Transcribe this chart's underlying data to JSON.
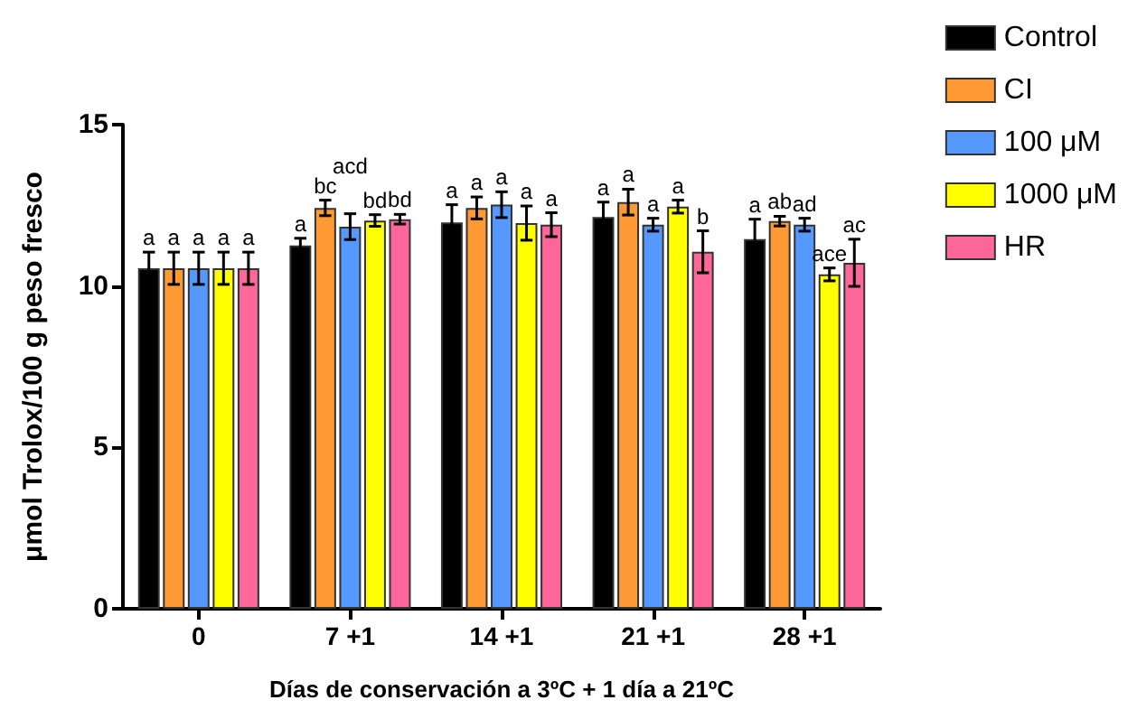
{
  "chart_data": {
    "type": "bar",
    "xlabel": "Días de conservación a 3ºC + 1 día a 21ºC",
    "ylabel": "μmol Trolox/100 g peso fresco",
    "categories": [
      "0",
      "7 +1",
      "14 +1",
      "21 +1",
      "28 +1"
    ],
    "ylim": [
      0,
      15
    ],
    "yticks": [
      0,
      5,
      10,
      15
    ],
    "grid": false,
    "legend": "top right",
    "series": [
      {
        "name": "Control",
        "color": "#000000",
        "values": [
          10.55,
          11.26,
          11.97,
          12.14,
          11.45
        ],
        "errors": [
          0.5,
          0.22,
          0.55,
          0.46,
          0.62
        ],
        "value_labels": [
          "a",
          "a",
          "a",
          "a",
          "a"
        ]
      },
      {
        "name": "CI",
        "color": "#ff9933",
        "values": [
          10.55,
          12.42,
          12.42,
          12.6,
          12.01
        ],
        "errors": [
          0.5,
          0.24,
          0.34,
          0.4,
          0.15
        ],
        "value_labels": [
          "a",
          "bc",
          "a",
          "a",
          "ab"
        ]
      },
      {
        "name": "100 μM",
        "color": "#5599ff",
        "values": [
          10.55,
          11.84,
          12.52,
          11.9,
          11.9
        ],
        "errors": [
          0.5,
          0.4,
          0.4,
          0.2,
          0.2
        ],
        "value_labels": [
          "a",
          "acd",
          "a",
          "a",
          "ad"
        ]
      },
      {
        "name": "1000 μM",
        "color": "#ffff00",
        "values": [
          10.55,
          12.03,
          11.95,
          12.46,
          10.36
        ],
        "errors": [
          0.5,
          0.18,
          0.53,
          0.2,
          0.2
        ],
        "value_labels": [
          "a",
          "bd",
          "a",
          "a",
          "ace"
        ]
      },
      {
        "name": "HR",
        "color": "#ff6699",
        "values": [
          10.55,
          12.07,
          11.9,
          11.06,
          10.72
        ],
        "errors": [
          0.5,
          0.15,
          0.37,
          0.65,
          0.73
        ],
        "value_labels": [
          "a",
          "bd",
          "a",
          "b",
          "ac"
        ]
      }
    ]
  }
}
